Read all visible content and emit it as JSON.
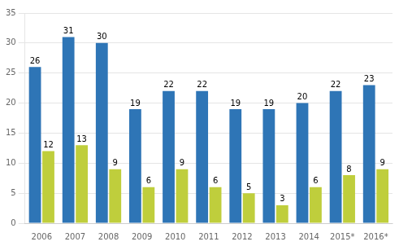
{
  "chart_data": {
    "type": "bar",
    "categories": [
      "2006",
      "2007",
      "2008",
      "2009",
      "2010",
      "2011",
      "2012",
      "2013",
      "2014",
      "2015*",
      "2016*"
    ],
    "series": [
      {
        "color": "#2E75B6",
        "values": [
          26,
          31,
          30,
          19,
          22,
          22,
          19,
          19,
          20,
          22,
          23
        ]
      },
      {
        "color": "#BFCE3C",
        "values": [
          12,
          13,
          9,
          6,
          9,
          6,
          5,
          3,
          6,
          8,
          9
        ]
      }
    ],
    "ylim": [
      0,
      35
    ],
    "yticks": [
      0,
      5,
      10,
      15,
      20,
      25,
      30,
      35
    ],
    "grid": true,
    "data_labels": true
  }
}
